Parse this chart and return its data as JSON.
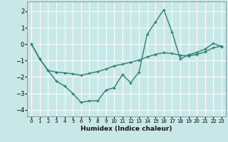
{
  "xlabel": "Humidex (Indice chaleur)",
  "xlim": [
    -0.5,
    23.5
  ],
  "ylim": [
    -4.4,
    2.6
  ],
  "yticks": [
    -4,
    -3,
    -2,
    -1,
    0,
    1,
    2
  ],
  "xticks": [
    0,
    1,
    2,
    3,
    4,
    5,
    6,
    7,
    8,
    9,
    10,
    11,
    12,
    13,
    14,
    15,
    16,
    17,
    18,
    19,
    20,
    21,
    22,
    23
  ],
  "line1_x": [
    0,
    1,
    2,
    3,
    4,
    5,
    6,
    7,
    8,
    9,
    10,
    11,
    12,
    13,
    14,
    15,
    16,
    17,
    18,
    19,
    20,
    21,
    22,
    23
  ],
  "line1_y": [
    0.0,
    -0.9,
    -1.6,
    -2.25,
    -2.55,
    -3.0,
    -3.55,
    -3.45,
    -3.45,
    -2.8,
    -2.65,
    -1.85,
    -2.35,
    -1.7,
    0.6,
    1.35,
    2.1,
    0.75,
    -0.9,
    -0.65,
    -0.5,
    -0.3,
    0.05,
    -0.15
  ],
  "line2_x": [
    0,
    1,
    2,
    3,
    4,
    5,
    6,
    7,
    8,
    9,
    10,
    11,
    12,
    13,
    14,
    15,
    16,
    17,
    18,
    19,
    20,
    21,
    22,
    23
  ],
  "line2_y": [
    0.0,
    -0.9,
    -1.6,
    -1.7,
    -1.75,
    -1.8,
    -1.9,
    -1.78,
    -1.67,
    -1.52,
    -1.32,
    -1.22,
    -1.1,
    -0.97,
    -0.78,
    -0.62,
    -0.52,
    -0.57,
    -0.67,
    -0.72,
    -0.62,
    -0.47,
    -0.22,
    -0.12
  ],
  "line_color": "#2d7d6d",
  "bg_color": "#c8e8e8",
  "grid_color": "#ffffff"
}
